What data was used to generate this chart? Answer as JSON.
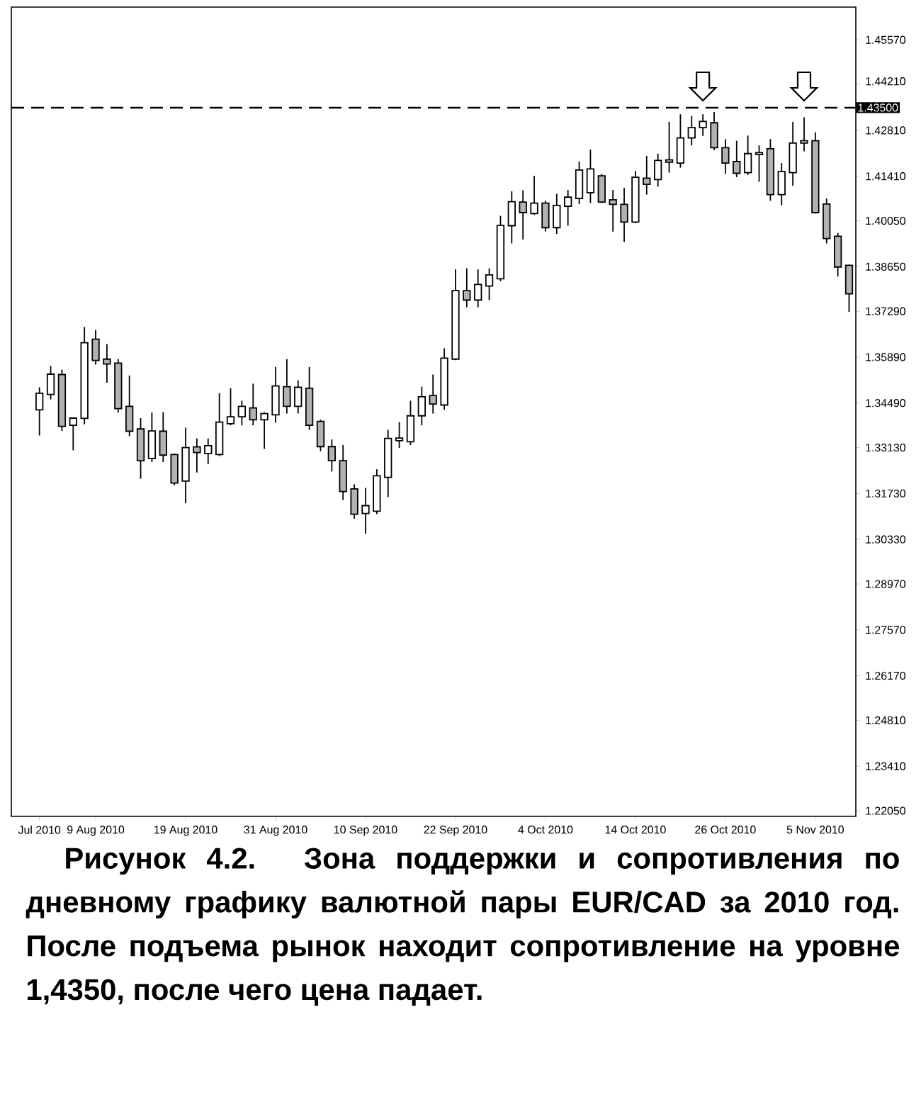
{
  "chart_data": {
    "type": "candlestick",
    "color": "#000000",
    "categories": [
      "Jul 2010",
      null,
      null,
      null,
      null,
      "9 Aug 2010",
      null,
      null,
      null,
      null,
      null,
      null,
      null,
      "19 Aug 2010",
      null,
      null,
      null,
      null,
      null,
      null,
      null,
      "31 Aug 2010",
      null,
      null,
      null,
      null,
      null,
      null,
      null,
      "10 Sep 2010",
      null,
      null,
      null,
      null,
      null,
      null,
      null,
      "22 Sep 2010",
      null,
      null,
      null,
      null,
      null,
      null,
      null,
      "4 Oct 2010",
      null,
      null,
      null,
      null,
      null,
      null,
      null,
      "14 Oct 2010",
      null,
      null,
      null,
      null,
      null,
      null,
      null,
      "26 Oct 2010",
      null,
      null,
      null,
      null,
      null,
      null,
      null,
      "5 Nov 2010",
      null,
      null,
      null
    ],
    "ohlc": [
      [
        1.3428,
        1.3497,
        1.335,
        1.3479
      ],
      [
        1.3475,
        1.3562,
        1.346,
        1.3537
      ],
      [
        1.3536,
        1.3551,
        1.3364,
        1.3378
      ],
      [
        1.3381,
        1.3403,
        1.3305,
        1.3403
      ],
      [
        1.3402,
        1.3681,
        1.3384,
        1.3633
      ],
      [
        1.3644,
        1.3672,
        1.3566,
        1.3579
      ],
      [
        1.3583,
        1.3629,
        1.3511,
        1.3568
      ],
      [
        1.3571,
        1.3583,
        1.342,
        1.3432
      ],
      [
        1.3439,
        1.3533,
        1.3348,
        1.3363
      ],
      [
        1.337,
        1.3403,
        1.3218,
        1.3273
      ],
      [
        1.328,
        1.342,
        1.3269,
        1.3364
      ],
      [
        1.3363,
        1.3421,
        1.3269,
        1.329
      ],
      [
        1.3292,
        1.3295,
        1.3198,
        1.3205
      ],
      [
        1.3211,
        1.3374,
        1.3143,
        1.3313
      ],
      [
        1.3315,
        1.3341,
        1.3237,
        1.3298
      ],
      [
        1.3295,
        1.3341,
        1.3263,
        1.3319
      ],
      [
        1.3292,
        1.3479,
        1.3287,
        1.3391
      ],
      [
        1.3386,
        1.3494,
        1.3381,
        1.3407
      ],
      [
        1.3407,
        1.3456,
        1.3381,
        1.3439
      ],
      [
        1.3434,
        1.3508,
        1.3381,
        1.3398
      ],
      [
        1.3398,
        1.3421,
        1.3309,
        1.3417
      ],
      [
        1.3413,
        1.3559,
        1.3389,
        1.3501
      ],
      [
        1.3499,
        1.3583,
        1.3417,
        1.3439
      ],
      [
        1.3439,
        1.3518,
        1.3417,
        1.3497
      ],
      [
        1.3494,
        1.3559,
        1.3367,
        1.3381
      ],
      [
        1.3393,
        1.3398,
        1.3302,
        1.3316
      ],
      [
        1.3316,
        1.3338,
        1.324,
        1.3273
      ],
      [
        1.3273,
        1.3321,
        1.3153,
        1.3179
      ],
      [
        1.3187,
        1.3201,
        1.3096,
        1.311
      ],
      [
        1.3112,
        1.319,
        1.305,
        1.3136
      ],
      [
        1.3119,
        1.3247,
        1.311,
        1.3227
      ],
      [
        1.3222,
        1.3367,
        1.3162,
        1.3341
      ],
      [
        1.3334,
        1.3391,
        1.3312,
        1.3342
      ],
      [
        1.3331,
        1.3456,
        1.3321,
        1.341
      ],
      [
        1.341,
        1.3499,
        1.3381,
        1.3468
      ],
      [
        1.3472,
        1.3536,
        1.3417,
        1.3446
      ],
      [
        1.3443,
        1.3616,
        1.3428,
        1.3586
      ],
      [
        1.3583,
        1.3857,
        1.358,
        1.3792
      ],
      [
        1.3792,
        1.386,
        1.3741,
        1.3763
      ],
      [
        1.3763,
        1.3857,
        1.3741,
        1.3811
      ],
      [
        1.3806,
        1.386,
        1.3763,
        1.384
      ],
      [
        1.3828,
        1.402,
        1.3821,
        1.3991
      ],
      [
        1.399,
        1.4095,
        1.3936,
        1.4063
      ],
      [
        1.4062,
        1.4098,
        1.3948,
        1.403
      ],
      [
        1.4027,
        1.4142,
        1.4023,
        1.4059
      ],
      [
        1.4059,
        1.4066,
        1.3972,
        1.3984
      ],
      [
        1.3984,
        1.4087,
        1.3965,
        1.4052
      ],
      [
        1.4049,
        1.4099,
        1.399,
        1.4077
      ],
      [
        1.4073,
        1.4186,
        1.4056,
        1.416
      ],
      [
        1.4091,
        1.4222,
        1.4059,
        1.4163
      ],
      [
        1.4142,
        1.4148,
        1.4059,
        1.4062
      ],
      [
        1.4069,
        1.4099,
        1.3972,
        1.4055
      ],
      [
        1.4055,
        1.4105,
        1.394,
        1.4001
      ],
      [
        1.4001,
        1.4157,
        1.3998,
        1.4138
      ],
      [
        1.4135,
        1.4203,
        1.4085,
        1.4116
      ],
      [
        1.4131,
        1.421,
        1.4109,
        1.4189
      ],
      [
        1.4184,
        1.4307,
        1.4152,
        1.4191
      ],
      [
        1.4181,
        1.433,
        1.4167,
        1.4258
      ],
      [
        1.4258,
        1.4325,
        1.4235,
        1.4289
      ],
      [
        1.4289,
        1.433,
        1.4264,
        1.4308
      ],
      [
        1.4304,
        1.4337,
        1.422,
        1.4228
      ],
      [
        1.4228,
        1.4254,
        1.4148,
        1.4181
      ],
      [
        1.4186,
        1.4249,
        1.4138,
        1.415
      ],
      [
        1.4152,
        1.4265,
        1.4145,
        1.421
      ],
      [
        1.4207,
        1.4235,
        1.4124,
        1.4213
      ],
      [
        1.4225,
        1.4254,
        1.4066,
        1.4085
      ],
      [
        1.4085,
        1.4181,
        1.4052,
        1.4155
      ],
      [
        1.4152,
        1.4307,
        1.4112,
        1.4242
      ],
      [
        1.4242,
        1.4321,
        1.4217,
        1.4249
      ],
      [
        1.4249,
        1.4275,
        1.4027,
        1.403
      ],
      [
        1.4056,
        1.4073,
        1.3936,
        1.3951
      ],
      [
        1.3958,
        1.3968,
        1.3835,
        1.3864
      ],
      [
        1.3869,
        1.3871,
        1.3727,
        1.3782
      ]
    ],
    "ylim": [
      1.2188,
      1.4657
    ],
    "yticks": [
      {
        "value": 1.4557,
        "label": "1.45570"
      },
      {
        "value": 1.4421,
        "label": "1.44210"
      },
      {
        "value": 1.4281,
        "label": "1.42810"
      },
      {
        "value": 1.4141,
        "label": "1.41410"
      },
      {
        "value": 1.4005,
        "label": "1.40050"
      },
      {
        "value": 1.3865,
        "label": "1.38650"
      },
      {
        "value": 1.3729,
        "label": "1.37290"
      },
      {
        "value": 1.3589,
        "label": "1.35890"
      },
      {
        "value": 1.3449,
        "label": "1.34490"
      },
      {
        "value": 1.3313,
        "label": "1.33130"
      },
      {
        "value": 1.3173,
        "label": "1.31730"
      },
      {
        "value": 1.3033,
        "label": "1.30330"
      },
      {
        "value": 1.2897,
        "label": "1.28970"
      },
      {
        "value": 1.2757,
        "label": "1.27570"
      },
      {
        "value": 1.2617,
        "label": "1.26170"
      },
      {
        "value": 1.2481,
        "label": "1.24810"
      },
      {
        "value": 1.2341,
        "label": "1.23410"
      },
      {
        "value": 1.2205,
        "label": "1.22050"
      }
    ],
    "ref_lines": [
      {
        "axis": "y",
        "value": 1.435,
        "label": "1.43500",
        "line_style": "dashed",
        "color": "#000000"
      }
    ],
    "annotations": [
      "Рисунок 4.2. Зона поддержки и сопротивления по дневному графику валютной пары EUR/CAD за 2010 год. После подъема рынок находит сопротивление на уровне 1,4350, после чего цена падает."
    ]
  }
}
